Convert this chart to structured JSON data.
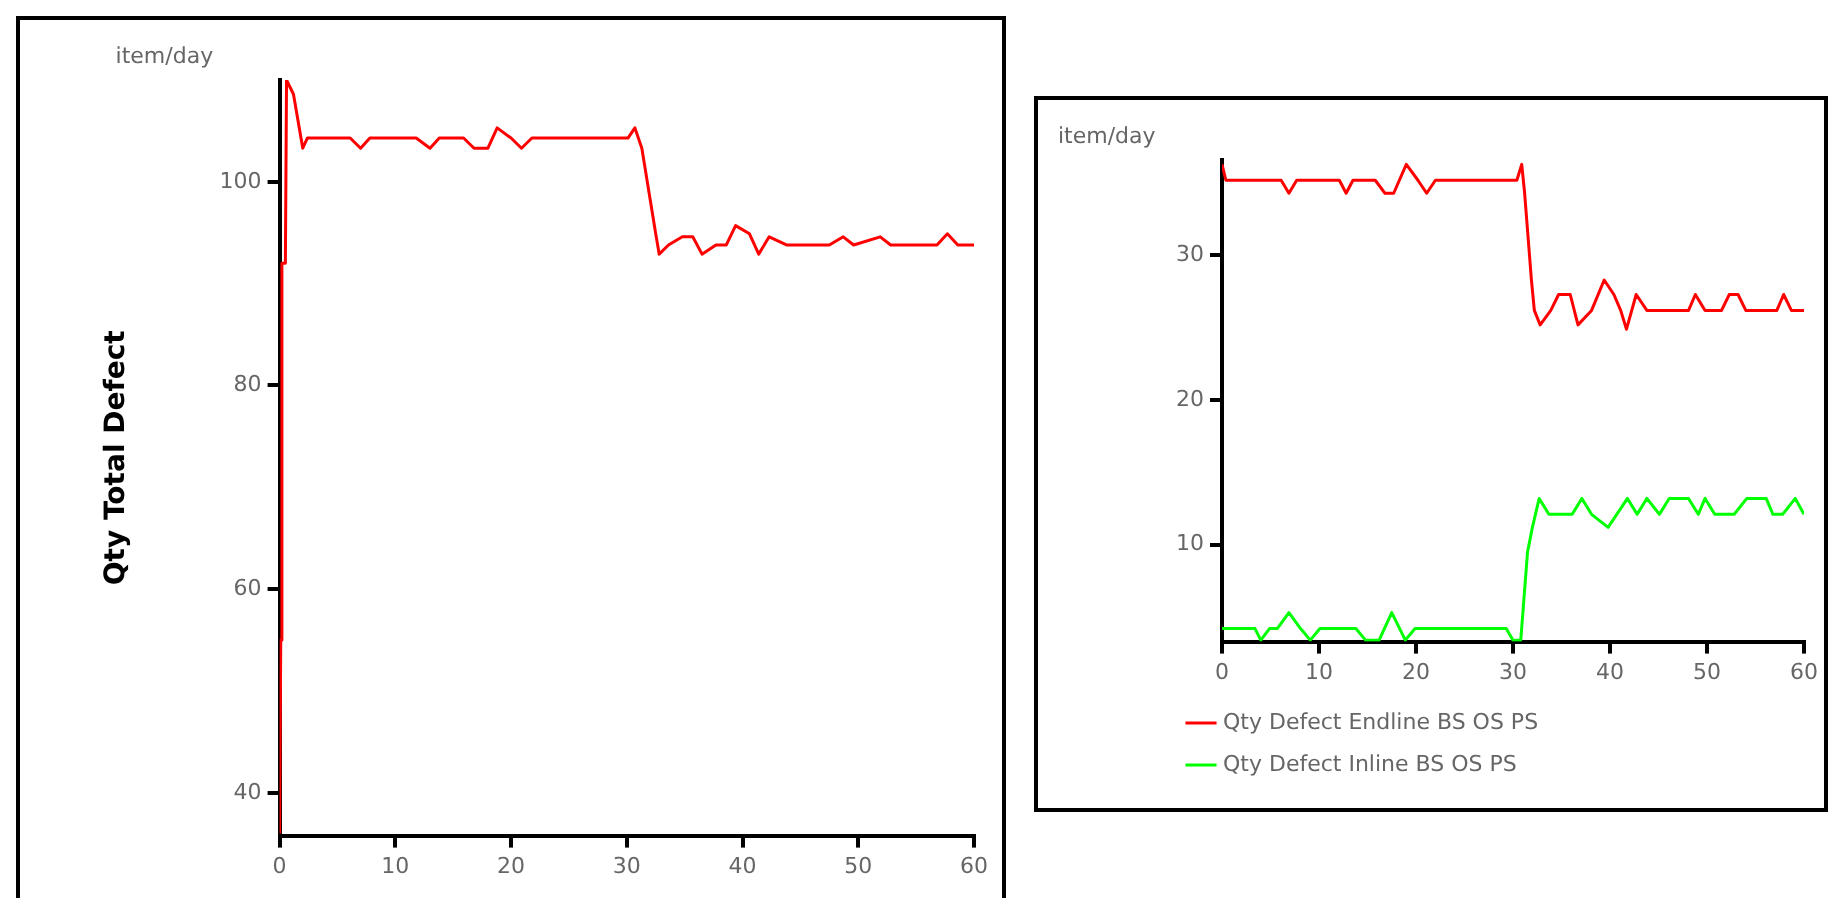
{
  "chart_data": [
    {
      "type": "line",
      "ylabel": "Qty Total Defect",
      "annotations": [
        "item/day"
      ],
      "xlim": [
        0,
        60
      ],
      "xticks": [
        0,
        10,
        20,
        30,
        40,
        50,
        60
      ],
      "ylim": [
        35.8,
        110
      ],
      "yticks": [
        40,
        60,
        80,
        100
      ],
      "grid": false,
      "legend": false,
      "marker": "none",
      "line_style": "solid",
      "series": [
        {
          "color": "#ff0000",
          "x": [
            0,
            0.1,
            0.2,
            0.5,
            0.6,
            1.2,
            2.0,
            2.4,
            6.1,
            7.0,
            7.8,
            11.8,
            13,
            13.8,
            15.9,
            16.8,
            18,
            18.8,
            20,
            20.9,
            21.8,
            30.1,
            30.7,
            31.3,
            32.5,
            32.8,
            33.6,
            34.8,
            35.7,
            36.5,
            37.7,
            38.6,
            39.4,
            40.6,
            41.4,
            42.3,
            43.8,
            47.5,
            48.7,
            49.6,
            51.9,
            52.8,
            56.8,
            57.7,
            58.6,
            60
          ],
          "values": [
            36,
            55,
            92,
            92,
            110,
            108.6,
            103.3,
            104.3,
            104.3,
            103.3,
            104.3,
            104.3,
            103.3,
            104.3,
            104.3,
            103.3,
            103.3,
            105.3,
            104.3,
            103.3,
            104.3,
            104.3,
            105.3,
            103.3,
            94.9,
            92.9,
            93.8,
            94.6,
            94.6,
            92.9,
            93.8,
            93.8,
            95.7,
            94.9,
            92.9,
            94.6,
            93.8,
            93.8,
            94.6,
            93.8,
            94.6,
            93.8,
            93.8,
            94.9,
            93.8,
            93.8
          ]
        }
      ]
    },
    {
      "type": "line",
      "annotations": [
        "item/day"
      ],
      "xlim": [
        0,
        60
      ],
      "xticks": [
        0,
        10,
        20,
        30,
        40,
        50,
        60
      ],
      "ylim": [
        3.3,
        36.6
      ],
      "yticks": [
        10,
        20,
        30
      ],
      "grid": false,
      "legend": "bottom",
      "marker": "none",
      "line_style": "solid",
      "series": [
        {
          "name": "Qty Defect Endline BS OS PS",
          "color": "#ff0000",
          "x": [
            0,
            0.4,
            6.1,
            6.9,
            7.7,
            12.1,
            12.8,
            13.5,
            15.8,
            16.8,
            17.7,
            19.0,
            20.2,
            21.1,
            22.0,
            30.4,
            30.9,
            31.2,
            31.9,
            32.2,
            32.8,
            33.9,
            34.7,
            35.9,
            36.7,
            38.1,
            39.4,
            40.4,
            41.1,
            41.7,
            42.7,
            43.8,
            48.1,
            48.8,
            49.8,
            51.5,
            52.3,
            53.2,
            54.0,
            57.2,
            57.9,
            58.7,
            60
          ],
          "values": [
            36.3,
            35.2,
            35.2,
            34.3,
            35.2,
            35.2,
            34.3,
            35.2,
            35.2,
            34.3,
            34.3,
            36.3,
            35.2,
            34.3,
            35.2,
            35.2,
            36.3,
            34.3,
            28.3,
            26.2,
            25.2,
            26.2,
            27.3,
            27.3,
            25.2,
            26.2,
            28.3,
            27.3,
            26.2,
            24.9,
            27.3,
            26.2,
            26.2,
            27.3,
            26.2,
            26.2,
            27.3,
            27.3,
            26.2,
            26.2,
            27.3,
            26.2,
            26.2
          ]
        },
        {
          "name": "Qty Defect Inline BS OS PS",
          "color": "#00ff00",
          "x": [
            0,
            3.4,
            4.0,
            4.9,
            5.7,
            6.9,
            8.1,
            9.1,
            10.1,
            13.8,
            14.8,
            16.2,
            17.5,
            18.9,
            19.9,
            29.3,
            30.0,
            30.8,
            31.5,
            32.0,
            32.7,
            33.7,
            36.1,
            37.1,
            38.1,
            39.8,
            41.8,
            42.8,
            43.8,
            45.1,
            46.1,
            48.1,
            49.1,
            49.8,
            50.8,
            52.8,
            54.1,
            56.1,
            56.8,
            57.8,
            59.1,
            60
          ],
          "values": [
            4.2,
            4.2,
            3.4,
            4.2,
            4.2,
            5.3,
            4.2,
            3.4,
            4.2,
            4.2,
            3.4,
            3.4,
            5.3,
            3.4,
            4.2,
            4.2,
            3.4,
            3.4,
            9.5,
            11.2,
            13.2,
            12.1,
            12.1,
            13.2,
            12.1,
            11.2,
            13.2,
            12.1,
            13.2,
            12.1,
            13.2,
            13.2,
            12.1,
            13.2,
            12.1,
            12.1,
            13.2,
            13.2,
            12.1,
            12.1,
            13.2,
            12.1
          ]
        }
      ]
    }
  ]
}
